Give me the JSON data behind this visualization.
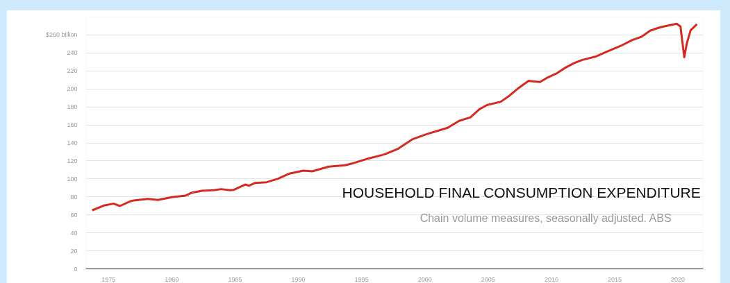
{
  "chart_data": {
    "type": "line",
    "title": "HOUSEHOLD FINAL CONSUMPTION EXPENDITURE",
    "subtitle": "Chain volume measures, seasonally adjusted. ABS",
    "x": [
      1973.7,
      1974.7,
      1975.4,
      1975.9,
      1976.7,
      1977.0,
      1978.1,
      1978.9,
      1980.0,
      1981.1,
      1981.6,
      1982.4,
      1983.3,
      1983.9,
      1984.6,
      1984.9,
      1985.8,
      1986.1,
      1986.6,
      1987.5,
      1988.4,
      1989.3,
      1990.4,
      1991.1,
      1992.4,
      1993.7,
      1994.4,
      1995.5,
      1996.8,
      1997.9,
      1999.0,
      2000.1,
      2001.8,
      2002.7,
      2003.6,
      2004.3,
      2004.9,
      2006.0,
      2006.7,
      2007.4,
      2008.2,
      2009.1,
      2009.6,
      2010.4,
      2011.1,
      2011.8,
      2012.4,
      2013.5,
      2014.2,
      2015.5,
      2016.4,
      2017.1,
      2017.8,
      2018.6,
      2019.9,
      2020.2,
      2020.5,
      2020.7,
      2021.0,
      2021.5
    ],
    "series": [
      {
        "color": "#d42a22",
        "values": [
          65,
          70.6,
          72.4,
          69.8,
          75,
          76,
          77.8,
          76.5,
          79.6,
          81.4,
          84.7,
          86.8,
          87.3,
          88.6,
          87.3,
          87.8,
          93.7,
          92.4,
          95.5,
          96.3,
          100.2,
          105.9,
          109.2,
          108.4,
          113.6,
          115.1,
          117.7,
          122.5,
          127.2,
          133.6,
          143.9,
          149.5,
          156.8,
          164.5,
          168.4,
          177.3,
          182,
          185.8,
          192.7,
          201,
          209,
          207.7,
          212,
          217.2,
          223.6,
          228.8,
          232.1,
          236,
          240.3,
          248,
          254.5,
          257.9,
          264.8,
          268.6,
          272.5,
          269.4,
          235.2,
          250.6,
          265.3,
          272
        ]
      }
    ],
    "xlim": [
      1973.2,
      2022.0
    ],
    "xticks": [
      1975,
      1980,
      1985,
      1990,
      1995,
      2000,
      2005,
      2010,
      2015,
      2020
    ],
    "ylim": [
      0,
      280
    ],
    "yticks": [
      0,
      20,
      40,
      60,
      80,
      100,
      120,
      140,
      160,
      180,
      200,
      220,
      240,
      {
        "value": 260,
        "label": "$260 billion"
      }
    ],
    "grid": "y",
    "marker": "none",
    "line_style": "solid"
  }
}
